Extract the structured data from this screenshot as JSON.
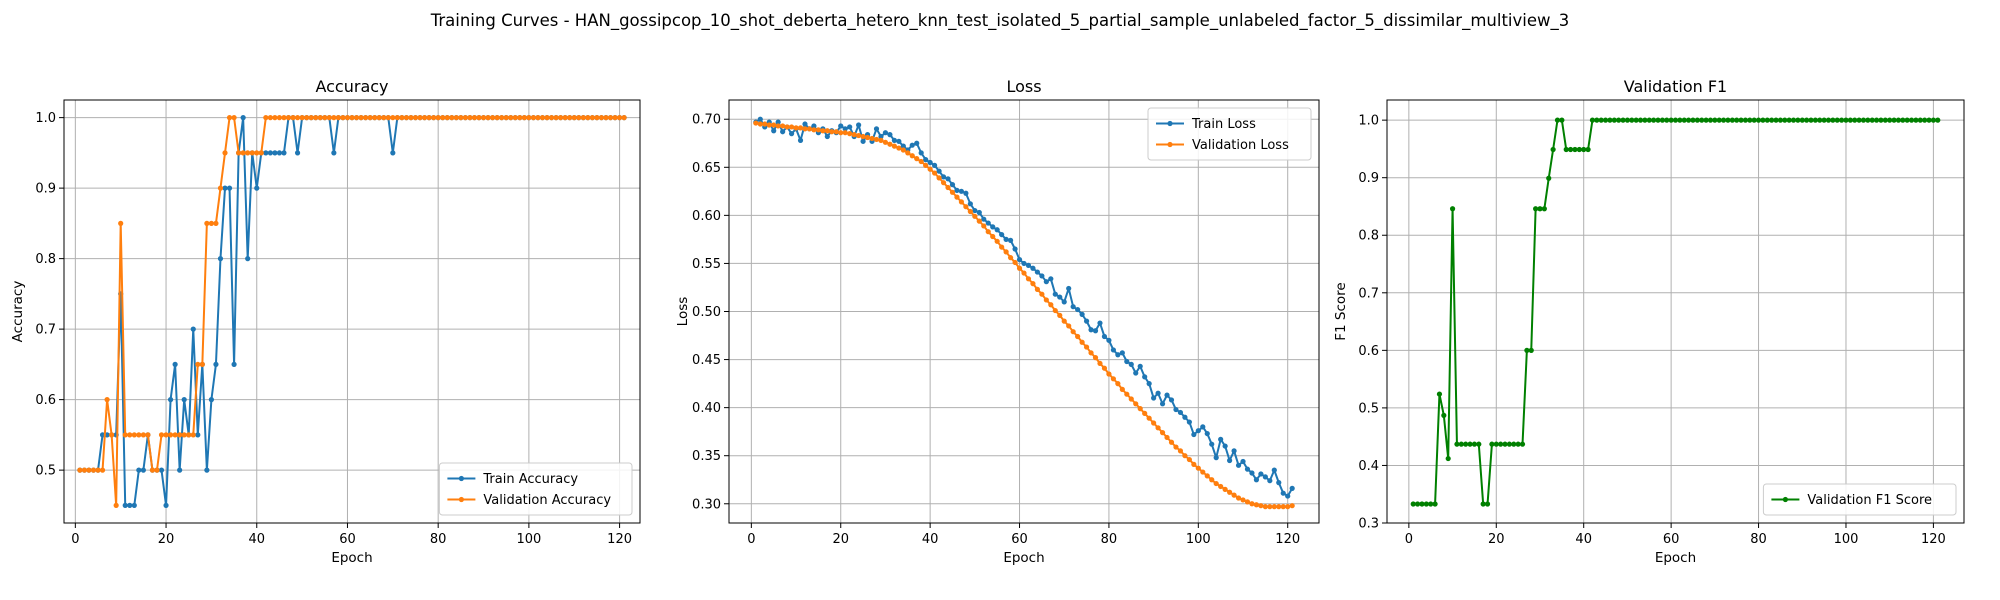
{
  "figure": {
    "suptitle": "Training Curves - HAN_gossipcop_10_shot_deberta_hetero_knn_test_isolated_5_partial_sample_unlabeled_factor_5_dissimilar_multiview_3"
  },
  "chart_data": [
    {
      "type": "line",
      "title": "Accuracy",
      "xlabel": "Epoch",
      "ylabel": "Accuracy",
      "xlim": [
        -2.5,
        124.5
      ],
      "ylim": [
        0.425,
        1.025
      ],
      "xticks": [
        0,
        20,
        40,
        60,
        80,
        100,
        120
      ],
      "xtick_labels": [
        "0",
        "20",
        "40",
        "60",
        "80",
        "100",
        "120"
      ],
      "yticks": [
        0.5,
        0.6,
        0.7,
        0.8,
        0.9,
        1.0
      ],
      "ytick_labels": [
        "0.5",
        "0.6",
        "0.7",
        "0.8",
        "0.9",
        "1.0"
      ],
      "grid": true,
      "legend": "lower-right",
      "series": [
        {
          "name": "Train Accuracy",
          "color": "#1f77b4",
          "x_start": 1,
          "values": [
            0.5,
            0.5,
            0.5,
            0.5,
            0.5,
            0.55,
            0.55,
            0.55,
            0.55,
            0.75,
            0.45,
            0.45,
            0.45,
            0.5,
            0.5,
            0.55,
            0.5,
            0.5,
            0.5,
            0.45,
            0.6,
            0.65,
            0.5,
            0.6,
            0.55,
            0.7,
            0.55,
            0.65,
            0.5,
            0.6,
            0.65,
            0.8,
            0.9,
            0.9,
            0.65,
            0.95,
            1.0,
            0.8,
            0.95,
            0.9,
            0.95,
            0.95,
            0.95,
            0.95,
            0.95,
            0.95,
            1.0,
            1.0,
            0.95,
            1.0,
            1.0,
            1.0,
            1.0,
            1.0,
            1.0,
            1.0,
            0.95,
            1.0,
            1.0,
            1.0,
            1.0,
            1.0,
            1.0,
            1.0,
            1.0,
            1.0,
            1.0,
            1.0,
            1.0,
            0.95,
            1.0,
            1.0,
            1.0,
            1.0,
            1.0,
            1.0,
            1.0,
            1.0,
            1.0,
            1.0,
            1.0,
            1.0,
            1.0,
            1.0,
            1.0,
            1.0,
            1.0,
            1.0,
            1.0,
            1.0,
            1.0,
            1.0,
            1.0,
            1.0,
            1.0,
            1.0,
            1.0,
            1.0,
            1.0,
            1.0,
            1.0,
            1.0,
            1.0,
            1.0,
            1.0,
            1.0,
            1.0,
            1.0,
            1.0,
            1.0,
            1.0,
            1.0,
            1.0,
            1.0,
            1.0,
            1.0,
            1.0,
            1.0,
            1.0,
            1.0,
            1.0
          ]
        },
        {
          "name": "Validation Accuracy",
          "color": "#ff7f0e",
          "x_start": 1,
          "values": [
            0.5,
            0.5,
            0.5,
            0.5,
            0.5,
            0.5,
            0.6,
            0.55,
            0.45,
            0.85,
            0.55,
            0.55,
            0.55,
            0.55,
            0.55,
            0.55,
            0.5,
            0.5,
            0.55,
            0.55,
            0.55,
            0.55,
            0.55,
            0.55,
            0.55,
            0.55,
            0.65,
            0.65,
            0.85,
            0.85,
            0.85,
            0.9,
            0.95,
            1.0,
            1.0,
            0.95,
            0.95,
            0.95,
            0.95,
            0.95,
            0.95,
            1.0,
            1.0,
            1.0,
            1.0,
            1.0,
            1.0,
            1.0,
            1.0,
            1.0,
            1.0,
            1.0,
            1.0,
            1.0,
            1.0,
            1.0,
            1.0,
            1.0,
            1.0,
            1.0,
            1.0,
            1.0,
            1.0,
            1.0,
            1.0,
            1.0,
            1.0,
            1.0,
            1.0,
            1.0,
            1.0,
            1.0,
            1.0,
            1.0,
            1.0,
            1.0,
            1.0,
            1.0,
            1.0,
            1.0,
            1.0,
            1.0,
            1.0,
            1.0,
            1.0,
            1.0,
            1.0,
            1.0,
            1.0,
            1.0,
            1.0,
            1.0,
            1.0,
            1.0,
            1.0,
            1.0,
            1.0,
            1.0,
            1.0,
            1.0,
            1.0,
            1.0,
            1.0,
            1.0,
            1.0,
            1.0,
            1.0,
            1.0,
            1.0,
            1.0,
            1.0,
            1.0,
            1.0,
            1.0,
            1.0,
            1.0,
            1.0,
            1.0,
            1.0,
            1.0,
            1.0
          ]
        }
      ]
    },
    {
      "type": "line",
      "title": "Loss",
      "xlabel": "Epoch",
      "ylabel": "Loss",
      "xlim": [
        -5,
        127
      ],
      "ylim": [
        0.28,
        0.72
      ],
      "xticks": [
        0,
        20,
        40,
        60,
        80,
        100,
        120
      ],
      "xtick_labels": [
        "0",
        "20",
        "40",
        "60",
        "80",
        "100",
        "120"
      ],
      "yticks": [
        0.3,
        0.35,
        0.4,
        0.45,
        0.5,
        0.55,
        0.6,
        0.65,
        0.7
      ],
      "ytick_labels": [
        "0.30",
        "0.35",
        "0.40",
        "0.45",
        "0.50",
        "0.55",
        "0.60",
        "0.65",
        "0.70"
      ],
      "grid": true,
      "legend": "top-right",
      "series": [
        {
          "name": "Train Loss",
          "color": "#1f77b4",
          "x_start": 1,
          "values": [
            0.697,
            0.7,
            0.692,
            0.697,
            0.688,
            0.697,
            0.687,
            0.692,
            0.685,
            0.69,
            0.678,
            0.695,
            0.69,
            0.693,
            0.686,
            0.69,
            0.682,
            0.688,
            0.686,
            0.693,
            0.69,
            0.692,
            0.682,
            0.694,
            0.677,
            0.684,
            0.677,
            0.69,
            0.682,
            0.686,
            0.684,
            0.678,
            0.677,
            0.672,
            0.668,
            0.673,
            0.675,
            0.665,
            0.658,
            0.655,
            0.652,
            0.646,
            0.64,
            0.638,
            0.632,
            0.626,
            0.625,
            0.623,
            0.612,
            0.605,
            0.603,
            0.596,
            0.592,
            0.588,
            0.585,
            0.58,
            0.575,
            0.574,
            0.565,
            0.554,
            0.55,
            0.548,
            0.545,
            0.541,
            0.537,
            0.531,
            0.534,
            0.518,
            0.515,
            0.51,
            0.524,
            0.505,
            0.502,
            0.497,
            0.49,
            0.481,
            0.48,
            0.488,
            0.474,
            0.47,
            0.46,
            0.455,
            0.457,
            0.448,
            0.445,
            0.436,
            0.443,
            0.432,
            0.425,
            0.41,
            0.415,
            0.404,
            0.413,
            0.408,
            0.398,
            0.395,
            0.39,
            0.385,
            0.372,
            0.376,
            0.38,
            0.373,
            0.362,
            0.348,
            0.367,
            0.36,
            0.345,
            0.355,
            0.34,
            0.344,
            0.336,
            0.332,
            0.325,
            0.331,
            0.328,
            0.324,
            0.335,
            0.322,
            0.311,
            0.308,
            0.316
          ]
        },
        {
          "name": "Validation Loss",
          "color": "#ff7f0e",
          "x_start": 1,
          "values": [
            0.696,
            0.695,
            0.695,
            0.694,
            0.694,
            0.693,
            0.693,
            0.692,
            0.692,
            0.691,
            0.691,
            0.69,
            0.69,
            0.689,
            0.689,
            0.688,
            0.688,
            0.687,
            0.687,
            0.686,
            0.686,
            0.685,
            0.684,
            0.683,
            0.682,
            0.681,
            0.68,
            0.679,
            0.678,
            0.676,
            0.674,
            0.672,
            0.67,
            0.668,
            0.665,
            0.662,
            0.659,
            0.656,
            0.652,
            0.648,
            0.644,
            0.639,
            0.634,
            0.629,
            0.624,
            0.619,
            0.614,
            0.609,
            0.604,
            0.599,
            0.594,
            0.589,
            0.583,
            0.578,
            0.573,
            0.567,
            0.562,
            0.556,
            0.551,
            0.545,
            0.54,
            0.534,
            0.529,
            0.523,
            0.518,
            0.512,
            0.507,
            0.501,
            0.496,
            0.49,
            0.485,
            0.479,
            0.474,
            0.468,
            0.463,
            0.457,
            0.452,
            0.446,
            0.441,
            0.435,
            0.43,
            0.425,
            0.419,
            0.414,
            0.409,
            0.404,
            0.399,
            0.394,
            0.389,
            0.384,
            0.379,
            0.374,
            0.369,
            0.364,
            0.359,
            0.355,
            0.35,
            0.346,
            0.341,
            0.337,
            0.333,
            0.329,
            0.325,
            0.321,
            0.318,
            0.315,
            0.312,
            0.309,
            0.306,
            0.304,
            0.302,
            0.3,
            0.299,
            0.298,
            0.297,
            0.297,
            0.297,
            0.297,
            0.297,
            0.297,
            0.298
          ]
        }
      ]
    },
    {
      "type": "line",
      "title": "Validation F1",
      "xlabel": "Epoch",
      "ylabel": "F1 Score",
      "xlim": [
        -5,
        127
      ],
      "ylim": [
        0.3,
        1.035
      ],
      "xticks": [
        0,
        20,
        40,
        60,
        80,
        100,
        120
      ],
      "xtick_labels": [
        "0",
        "20",
        "40",
        "60",
        "80",
        "100",
        "120"
      ],
      "yticks": [
        0.3,
        0.4,
        0.5,
        0.6,
        0.7,
        0.8,
        0.9,
        1.0
      ],
      "ytick_labels": [
        "0.3",
        "0.4",
        "0.5",
        "0.6",
        "0.7",
        "0.8",
        "0.9",
        "1.0"
      ],
      "grid": true,
      "legend": "lower-right",
      "series": [
        {
          "name": "Validation F1 Score",
          "color": "#008000",
          "x_start": 1,
          "values": [
            0.333,
            0.333,
            0.333,
            0.333,
            0.333,
            0.333,
            0.524,
            0.487,
            0.412,
            0.846,
            0.437,
            0.437,
            0.437,
            0.437,
            0.437,
            0.437,
            0.333,
            0.333,
            0.437,
            0.437,
            0.437,
            0.437,
            0.437,
            0.437,
            0.437,
            0.437,
            0.6,
            0.6,
            0.846,
            0.846,
            0.846,
            0.899,
            0.949,
            1.0,
            1.0,
            0.949,
            0.949,
            0.949,
            0.949,
            0.949,
            0.949,
            1.0,
            1.0,
            1.0,
            1.0,
            1.0,
            1.0,
            1.0,
            1.0,
            1.0,
            1.0,
            1.0,
            1.0,
            1.0,
            1.0,
            1.0,
            1.0,
            1.0,
            1.0,
            1.0,
            1.0,
            1.0,
            1.0,
            1.0,
            1.0,
            1.0,
            1.0,
            1.0,
            1.0,
            1.0,
            1.0,
            1.0,
            1.0,
            1.0,
            1.0,
            1.0,
            1.0,
            1.0,
            1.0,
            1.0,
            1.0,
            1.0,
            1.0,
            1.0,
            1.0,
            1.0,
            1.0,
            1.0,
            1.0,
            1.0,
            1.0,
            1.0,
            1.0,
            1.0,
            1.0,
            1.0,
            1.0,
            1.0,
            1.0,
            1.0,
            1.0,
            1.0,
            1.0,
            1.0,
            1.0,
            1.0,
            1.0,
            1.0,
            1.0,
            1.0,
            1.0,
            1.0,
            1.0,
            1.0,
            1.0,
            1.0,
            1.0,
            1.0,
            1.0,
            1.0,
            1.0
          ]
        }
      ]
    }
  ]
}
